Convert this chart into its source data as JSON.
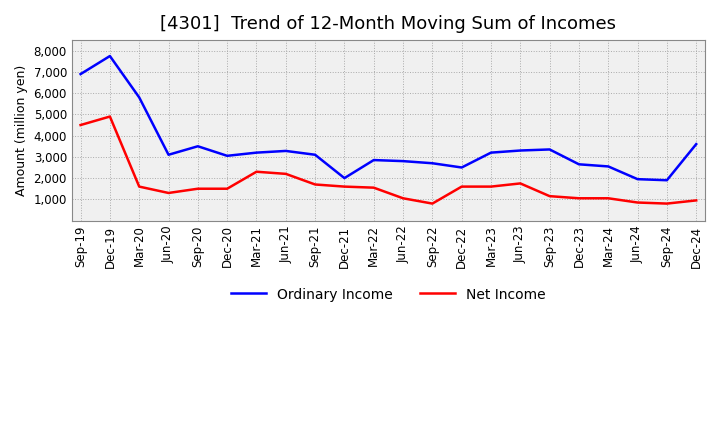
{
  "title": "[4301]  Trend of 12-Month Moving Sum of Incomes",
  "ylabel": "Amount (million yen)",
  "x_labels": [
    "Sep-19",
    "Dec-19",
    "Mar-20",
    "Jun-20",
    "Sep-20",
    "Dec-20",
    "Mar-21",
    "Jun-21",
    "Sep-21",
    "Dec-21",
    "Mar-22",
    "Jun-22",
    "Sep-22",
    "Dec-22",
    "Mar-23",
    "Jun-23",
    "Sep-23",
    "Dec-23",
    "Mar-24",
    "Jun-24",
    "Sep-24",
    "Dec-24"
  ],
  "ordinary_income": [
    6900,
    7750,
    5800,
    3100,
    3500,
    3050,
    3200,
    3280,
    3100,
    2000,
    2850,
    2800,
    2700,
    2500,
    3200,
    3300,
    3350,
    2650,
    2550,
    1950,
    1900,
    3600
  ],
  "net_income": [
    4500,
    4900,
    1600,
    1300,
    1500,
    1500,
    2300,
    2200,
    1700,
    1600,
    1550,
    1050,
    800,
    1600,
    1600,
    1750,
    1150,
    1050,
    1050,
    850,
    800,
    950
  ],
  "ordinary_color": "#0000ff",
  "net_color": "#ff0000",
  "ylim_min": 0,
  "ylim_max": 8500,
  "yticks": [
    1000,
    2000,
    3000,
    4000,
    5000,
    6000,
    7000,
    8000
  ],
  "plot_bg_color": "#f0f0f0",
  "fig_bg_color": "#ffffff",
  "grid_color": "#aaaaaa",
  "title_fontsize": 13,
  "axis_fontsize": 9,
  "tick_fontsize": 8.5,
  "legend_fontsize": 10
}
